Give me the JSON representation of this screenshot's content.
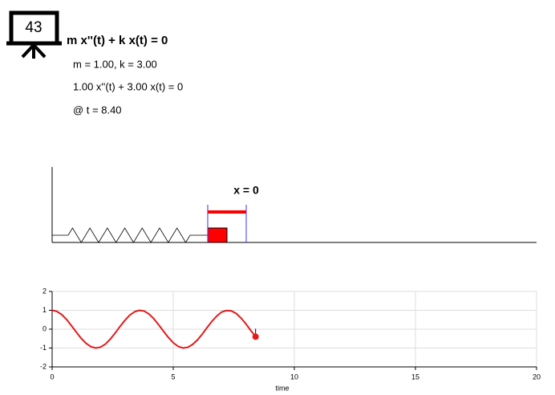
{
  "icon_label": "43",
  "equation": "m x''(t) + k x(t) = 0",
  "params": "m = 1.00, k = 3.00",
  "equation_numeric": "1.00 x''(t) + 3.00 x(t) = 0",
  "time_label": "@ t = 8.40",
  "equilibrium_label": "x = 0",
  "chart_data": {
    "type": "line",
    "x": [
      0,
      0.2,
      0.4,
      0.6,
      0.8,
      1.0,
      1.2,
      1.4,
      1.6,
      1.8,
      2.0,
      2.2,
      2.4,
      2.6,
      2.8,
      3.0,
      3.2,
      3.4,
      3.6,
      3.8,
      4.0,
      4.2,
      4.4,
      4.6,
      4.8,
      5.0,
      5.2,
      5.4,
      5.6,
      5.8,
      6.0,
      6.2,
      6.4,
      6.6,
      6.8,
      7.0,
      7.2,
      7.4,
      7.6,
      7.8,
      8.0,
      8.2,
      8.4
    ],
    "series": [
      {
        "color": "#e41a1c",
        "values": [
          1.0,
          0.94,
          0.77,
          0.51,
          0.18,
          -0.16,
          -0.49,
          -0.75,
          -0.93,
          -1.0,
          -0.95,
          -0.79,
          -0.53,
          -0.21,
          0.14,
          0.46,
          0.74,
          0.92,
          1.0,
          0.96,
          0.8,
          0.55,
          0.23,
          -0.11,
          -0.44,
          -0.72,
          -0.91,
          -1.0,
          -0.96,
          -0.81,
          -0.57,
          -0.26,
          0.09,
          0.42,
          0.7,
          0.91,
          0.99,
          0.97,
          0.83,
          0.59,
          0.28,
          -0.07,
          -0.4
        ]
      }
    ],
    "xlim": [
      0,
      20
    ],
    "ylim": [
      -2,
      2
    ],
    "xticks": [
      0,
      5,
      10,
      15,
      20
    ],
    "yticks": [
      -2,
      -1,
      0,
      1,
      2
    ],
    "xlabel": "time",
    "grid": true
  }
}
